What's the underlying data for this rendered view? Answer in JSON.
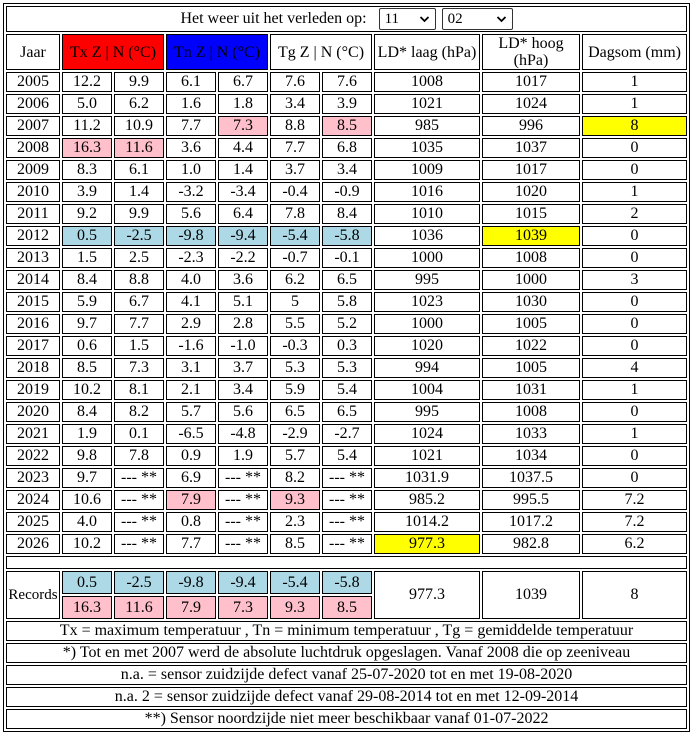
{
  "header": {
    "label": "Het weer uit het verleden op:",
    "month": "11",
    "day": "02"
  },
  "columns": {
    "jaar": "Jaar",
    "tx": "Tx Z | N (°C)",
    "tn": "Tn Z | N (°C)",
    "tg": "Tg Z | N (°C)",
    "ld_laag": "LD* laag (hPa)",
    "ld_hoog": "LD* hoog (hPa)",
    "dagsom": "Dagsom (mm)"
  },
  "colors": {
    "header_tx": "#ff0000",
    "header_tn": "#0000ff",
    "cold": "#add8e6",
    "warm": "#ffc0cb",
    "extreme": "#ffff00"
  },
  "years": [
    {
      "year": "2005",
      "cells": [
        "12.2",
        "9.9",
        "6.1",
        "6.7",
        "7.6",
        "7.6",
        "1008",
        "1017",
        "1"
      ],
      "hl": {}
    },
    {
      "year": "2006",
      "cells": [
        "5.0",
        "6.2",
        "1.6",
        "1.8",
        "3.4",
        "3.9",
        "1021",
        "1024",
        "1"
      ],
      "hl": {}
    },
    {
      "year": "2007",
      "cells": [
        "11.2",
        "10.9",
        "7.7",
        "7.3",
        "8.8",
        "8.5",
        "985",
        "996",
        "8"
      ],
      "hl": {
        "3": "warm",
        "5": "warm",
        "8": "extreme"
      }
    },
    {
      "year": "2008",
      "cells": [
        "16.3",
        "11.6",
        "3.6",
        "4.4",
        "7.7",
        "6.8",
        "1035",
        "1037",
        "0"
      ],
      "hl": {
        "0": "warm",
        "1": "warm"
      }
    },
    {
      "year": "2009",
      "cells": [
        "8.3",
        "6.1",
        "1.0",
        "1.4",
        "3.7",
        "3.4",
        "1009",
        "1017",
        "0"
      ],
      "hl": {}
    },
    {
      "year": "2010",
      "cells": [
        "3.9",
        "1.4",
        "-3.2",
        "-3.4",
        "-0.4",
        "-0.9",
        "1016",
        "1020",
        "1"
      ],
      "hl": {}
    },
    {
      "year": "2011",
      "cells": [
        "9.2",
        "9.9",
        "5.6",
        "6.4",
        "7.8",
        "8.4",
        "1010",
        "1015",
        "2"
      ],
      "hl": {}
    },
    {
      "year": "2012",
      "cells": [
        "0.5",
        "-2.5",
        "-9.8",
        "-9.4",
        "-5.4",
        "-5.8",
        "1036",
        "1039",
        "0"
      ],
      "hl": {
        "0": "cold",
        "1": "cold",
        "2": "cold",
        "3": "cold",
        "4": "cold",
        "5": "cold",
        "7": "extreme"
      }
    },
    {
      "year": "2013",
      "cells": [
        "1.5",
        "2.5",
        "-2.3",
        "-2.2",
        "-0.7",
        "-0.1",
        "1000",
        "1008",
        "0"
      ],
      "hl": {}
    },
    {
      "year": "2014",
      "cells": [
        "8.4",
        "8.8",
        "4.0",
        "3.6",
        "6.2",
        "6.5",
        "995",
        "1000",
        "3"
      ],
      "hl": {}
    },
    {
      "year": "2015",
      "cells": [
        "5.9",
        "6.7",
        "4.1",
        "5.1",
        "5",
        "5.8",
        "1023",
        "1030",
        "0"
      ],
      "hl": {}
    },
    {
      "year": "2016",
      "cells": [
        "9.7",
        "7.7",
        "2.9",
        "2.8",
        "5.5",
        "5.2",
        "1000",
        "1005",
        "0"
      ],
      "hl": {}
    },
    {
      "year": "2017",
      "cells": [
        "0.6",
        "1.5",
        "-1.6",
        "-1.0",
        "-0.3",
        "0.3",
        "1020",
        "1022",
        "0"
      ],
      "hl": {}
    },
    {
      "year": "2018",
      "cells": [
        "8.5",
        "7.3",
        "3.1",
        "3.7",
        "5.3",
        "5.3",
        "994",
        "1005",
        "4"
      ],
      "hl": {}
    },
    {
      "year": "2019",
      "cells": [
        "10.2",
        "8.1",
        "2.1",
        "3.4",
        "5.9",
        "5.4",
        "1004",
        "1031",
        "1"
      ],
      "hl": {}
    },
    {
      "year": "2020",
      "cells": [
        "8.4",
        "8.2",
        "5.7",
        "5.6",
        "6.5",
        "6.5",
        "995",
        "1008",
        "0"
      ],
      "hl": {}
    },
    {
      "year": "2021",
      "cells": [
        "1.9",
        "0.1",
        "-6.5",
        "-4.8",
        "-2.9",
        "-2.7",
        "1024",
        "1033",
        "1"
      ],
      "hl": {}
    },
    {
      "year": "2022",
      "cells": [
        "9.8",
        "7.8",
        "0.9",
        "1.9",
        "5.7",
        "5.4",
        "1021",
        "1034",
        "0"
      ],
      "hl": {}
    },
    {
      "year": "2023",
      "cells": [
        "9.7",
        "--- **",
        "6.9",
        "--- **",
        "8.2",
        "--- **",
        "1031.9",
        "1037.5",
        "0"
      ],
      "hl": {}
    },
    {
      "year": "2024",
      "cells": [
        "10.6",
        "--- **",
        "7.9",
        "--- **",
        "9.3",
        "--- **",
        "985.2",
        "995.5",
        "7.2"
      ],
      "hl": {
        "2": "warm",
        "4": "warm"
      }
    },
    {
      "year": "2025",
      "cells": [
        "4.0",
        "--- **",
        "0.8",
        "--- **",
        "2.3",
        "--- **",
        "1014.2",
        "1017.2",
        "7.2"
      ],
      "hl": {}
    },
    {
      "year": "2026",
      "cells": [
        "10.2",
        "--- **",
        "7.7",
        "--- **",
        "8.5",
        "--- **",
        "977.3",
        "982.8",
        "6.2"
      ],
      "hl": {
        "6": "extreme"
      }
    }
  ],
  "records": {
    "label": "Records",
    "cold": [
      "0.5",
      "-2.5",
      "-9.8",
      "-9.4",
      "-5.4",
      "-5.8"
    ],
    "warm": [
      "16.3",
      "11.6",
      "7.9",
      "7.3",
      "9.3",
      "8.5"
    ],
    "ld_laag": "977.3",
    "ld_hoog": "1039",
    "dagsom": "8"
  },
  "footnotes": [
    "Tx = maximum temperatuur , Tn = minimum temperatuur , Tg = gemiddelde temperatuur",
    "*) Tot en met 2007 werd de absolute luchtdruk opgeslagen. Vanaf 2008 die op zeeniveau",
    "n.a. = sensor zuidzijde defect vanaf 25-07-2020 tot en met 19-08-2020",
    "n.a. 2 = sensor zuidzijde defect vanaf 29-08-2014 tot en met 12-09-2014",
    "**) Sensor noordzijde niet meer beschikbaar vanaf 01-07-2022"
  ]
}
